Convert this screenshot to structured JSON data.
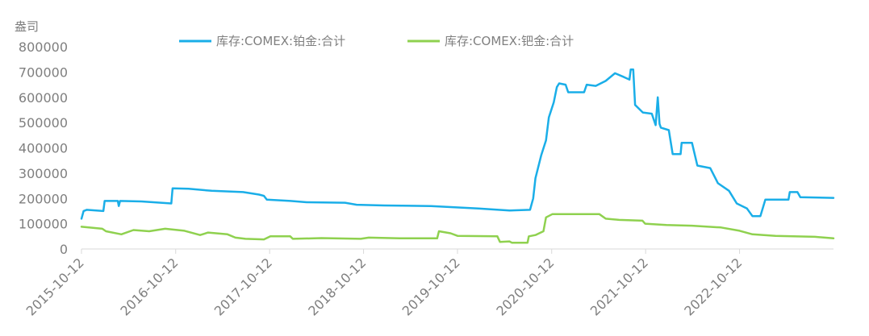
{
  "chart_data": {
    "type": "line",
    "ylabel": "盎司",
    "ylim": [
      0,
      800000
    ],
    "yticks": [
      "800000",
      "700000",
      "600000",
      "500000",
      "400000",
      "300000",
      "200000",
      "100000",
      "0"
    ],
    "xlim": [
      "2015-10-12",
      "2023-10-12"
    ],
    "xticks": [
      "2015-10-12",
      "2016-10-12",
      "2017-10-12",
      "2018-10-12",
      "2019-10-12",
      "2020-10-12",
      "2021-10-12",
      "2022-10-12"
    ],
    "legend_position": "top",
    "grid": false,
    "series": [
      {
        "name": "库存:COMEX:铂金:合计",
        "color": "#1aaee8",
        "points": [
          [
            "2015-10-12",
            120000
          ],
          [
            "2015-10-20",
            150000
          ],
          [
            "2015-11-01",
            155000
          ],
          [
            "2016-01-05",
            150000
          ],
          [
            "2016-01-10",
            190000
          ],
          [
            "2016-03-01",
            190000
          ],
          [
            "2016-03-05",
            170000
          ],
          [
            "2016-03-10",
            190000
          ],
          [
            "2016-06-01",
            188000
          ],
          [
            "2016-09-25",
            180000
          ],
          [
            "2016-09-30",
            240000
          ],
          [
            "2016-12-01",
            238000
          ],
          [
            "2017-03-01",
            230000
          ],
          [
            "2017-07-01",
            225000
          ],
          [
            "2017-09-01",
            215000
          ],
          [
            "2017-09-20",
            210000
          ],
          [
            "2017-10-01",
            195000
          ],
          [
            "2018-01-01",
            190000
          ],
          [
            "2018-03-05",
            185000
          ],
          [
            "2018-08-01",
            183000
          ],
          [
            "2018-09-15",
            175000
          ],
          [
            "2019-01-01",
            172000
          ],
          [
            "2019-07-01",
            170000
          ],
          [
            "2020-01-01",
            160000
          ],
          [
            "2020-05-01",
            152000
          ],
          [
            "2020-07-20",
            155000
          ],
          [
            "2020-08-01",
            200000
          ],
          [
            "2020-08-10",
            280000
          ],
          [
            "2020-09-01",
            370000
          ],
          [
            "2020-09-20",
            430000
          ],
          [
            "2020-10-01",
            520000
          ],
          [
            "2020-10-20",
            580000
          ],
          [
            "2020-11-01",
            640000
          ],
          [
            "2020-11-10",
            655000
          ],
          [
            "2020-12-05",
            650000
          ],
          [
            "2020-12-15",
            620000
          ],
          [
            "2021-02-15",
            620000
          ],
          [
            "2021-02-25",
            650000
          ],
          [
            "2021-04-01",
            645000
          ],
          [
            "2021-05-10",
            665000
          ],
          [
            "2021-06-15",
            695000
          ],
          [
            "2021-07-20",
            680000
          ],
          [
            "2021-08-10",
            670000
          ],
          [
            "2021-08-15",
            710000
          ],
          [
            "2021-08-25",
            710000
          ],
          [
            "2021-09-01",
            570000
          ],
          [
            "2021-10-01",
            540000
          ],
          [
            "2021-11-05",
            535000
          ],
          [
            "2021-11-20",
            490000
          ],
          [
            "2021-11-28",
            600000
          ],
          [
            "2021-12-05",
            495000
          ],
          [
            "2021-12-10",
            480000
          ],
          [
            "2022-01-10",
            470000
          ],
          [
            "2022-01-25",
            375000
          ],
          [
            "2022-02-25",
            375000
          ],
          [
            "2022-03-01",
            420000
          ],
          [
            "2022-04-10",
            420000
          ],
          [
            "2022-05-01",
            330000
          ],
          [
            "2022-06-20",
            320000
          ],
          [
            "2022-07-20",
            260000
          ],
          [
            "2022-09-01",
            230000
          ],
          [
            "2022-10-01",
            180000
          ],
          [
            "2022-11-10",
            160000
          ],
          [
            "2022-12-01",
            130000
          ],
          [
            "2023-01-01",
            130000
          ],
          [
            "2023-01-20",
            195000
          ],
          [
            "2023-04-20",
            195000
          ],
          [
            "2023-04-25",
            225000
          ],
          [
            "2023-05-25",
            225000
          ],
          [
            "2023-06-05",
            205000
          ],
          [
            "2023-10-12",
            202000
          ]
        ]
      },
      {
        "name": "库存:COMEX:钯金:合计",
        "color": "#8fd14f",
        "points": [
          [
            "2015-10-12",
            88000
          ],
          [
            "2016-01-01",
            80000
          ],
          [
            "2016-01-15",
            70000
          ],
          [
            "2016-03-15",
            58000
          ],
          [
            "2016-05-01",
            75000
          ],
          [
            "2016-07-01",
            70000
          ],
          [
            "2016-09-01",
            80000
          ],
          [
            "2016-11-15",
            72000
          ],
          [
            "2017-01-15",
            55000
          ],
          [
            "2017-02-15",
            65000
          ],
          [
            "2017-05-01",
            58000
          ],
          [
            "2017-06-01",
            45000
          ],
          [
            "2017-07-10",
            40000
          ],
          [
            "2017-09-20",
            38000
          ],
          [
            "2017-10-15",
            50000
          ],
          [
            "2017-12-31",
            50000
          ],
          [
            "2018-01-10",
            40000
          ],
          [
            "2018-05-01",
            43000
          ],
          [
            "2018-10-01",
            40000
          ],
          [
            "2018-11-01",
            45000
          ],
          [
            "2019-03-01",
            42000
          ],
          [
            "2019-07-25",
            42000
          ],
          [
            "2019-08-01",
            70000
          ],
          [
            "2019-09-15",
            62000
          ],
          [
            "2019-10-12",
            52000
          ],
          [
            "2020-03-15",
            50000
          ],
          [
            "2020-03-25",
            28000
          ],
          [
            "2020-05-01",
            30000
          ],
          [
            "2020-05-10",
            25000
          ],
          [
            "2020-07-10",
            25000
          ],
          [
            "2020-07-15",
            50000
          ],
          [
            "2020-08-10",
            55000
          ],
          [
            "2020-09-10",
            70000
          ],
          [
            "2020-09-20",
            125000
          ],
          [
            "2020-10-15",
            138000
          ],
          [
            "2021-04-15",
            138000
          ],
          [
            "2021-05-10",
            120000
          ],
          [
            "2021-07-01",
            115000
          ],
          [
            "2021-09-30",
            112000
          ],
          [
            "2021-10-10",
            100000
          ],
          [
            "2022-01-01",
            95000
          ],
          [
            "2022-04-10",
            92000
          ],
          [
            "2022-08-01",
            85000
          ],
          [
            "2022-10-12",
            72000
          ],
          [
            "2022-12-01",
            58000
          ],
          [
            "2023-03-01",
            52000
          ],
          [
            "2023-08-01",
            48000
          ],
          [
            "2023-10-12",
            42000
          ]
        ]
      }
    ]
  }
}
